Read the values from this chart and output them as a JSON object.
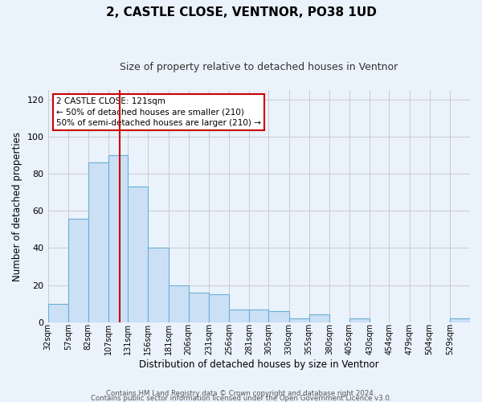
{
  "title": "2, CASTLE CLOSE, VENTNOR, PO38 1UD",
  "subtitle": "Size of property relative to detached houses in Ventnor",
  "xlabel": "Distribution of detached houses by size in Ventnor",
  "ylabel": "Number of detached properties",
  "bin_labels": [
    "32sqm",
    "57sqm",
    "82sqm",
    "107sqm",
    "131sqm",
    "156sqm",
    "181sqm",
    "206sqm",
    "231sqm",
    "256sqm",
    "281sqm",
    "305sqm",
    "330sqm",
    "355sqm",
    "380sqm",
    "405sqm",
    "430sqm",
    "454sqm",
    "479sqm",
    "504sqm",
    "529sqm"
  ],
  "bin_edges": [
    32,
    57,
    82,
    107,
    131,
    156,
    181,
    206,
    231,
    256,
    281,
    305,
    330,
    355,
    380,
    405,
    430,
    454,
    479,
    504,
    529,
    554
  ],
  "bar_heights": [
    10,
    56,
    86,
    90,
    73,
    40,
    20,
    16,
    15,
    7,
    7,
    6,
    2,
    4,
    0,
    2,
    0,
    0,
    0,
    0,
    2
  ],
  "bar_facecolor": "#cce0f5",
  "bar_edgecolor": "#6aaed6",
  "grid_color": "#cccccc",
  "bg_color": "#eaf2fb",
  "vline_x": 121,
  "vline_color": "#cc0000",
  "annotation_line1": "2 CASTLE CLOSE: 121sqm",
  "annotation_line2": "← 50% of detached houses are smaller (210)",
  "annotation_line3": "50% of semi-detached houses are larger (210) →",
  "annotation_box_edgecolor": "#cc0000",
  "annotation_box_facecolor": "#ffffff",
  "ylim": [
    0,
    125
  ],
  "yticks": [
    0,
    20,
    40,
    60,
    80,
    100,
    120
  ],
  "footer_line1": "Contains HM Land Registry data © Crown copyright and database right 2024.",
  "footer_line2": "Contains public sector information licensed under the Open Government Licence v3.0."
}
